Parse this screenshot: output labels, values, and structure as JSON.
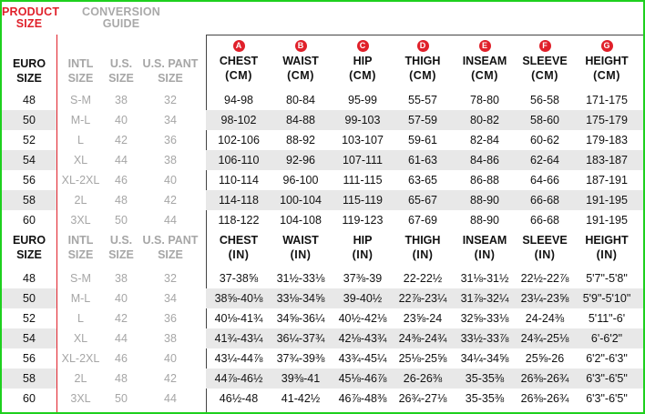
{
  "header": {
    "product_size": [
      "PRODUCT",
      "SIZE"
    ],
    "conversion_guide": [
      "CONVERSION",
      "GUIDE"
    ]
  },
  "badge_color": "#e0202a",
  "columns": {
    "euro": [
      "EURO",
      "SIZE"
    ],
    "intl": [
      "INTL",
      "SIZE"
    ],
    "us": [
      "U.S.",
      "SIZE"
    ],
    "uspant": [
      "U.S. PANT",
      "SIZE"
    ],
    "measurements": [
      {
        "badge": "A",
        "name": "CHEST"
      },
      {
        "badge": "B",
        "name": "WAIST"
      },
      {
        "badge": "C",
        "name": "HIP"
      },
      {
        "badge": "D",
        "name": "THIGH"
      },
      {
        "badge": "E",
        "name": "INSEAM"
      },
      {
        "badge": "F",
        "name": "SLEEVE"
      },
      {
        "badge": "G",
        "name": "HEIGHT"
      }
    ],
    "unit_cm": "(CM)",
    "unit_in": "(IN)"
  },
  "cm_rows": [
    {
      "euro": "48",
      "intl": "S-M",
      "us": "38",
      "pant": "32",
      "vals": [
        "94-98",
        "80-84",
        "95-99",
        "55-57",
        "78-80",
        "56-58",
        "171-175"
      ]
    },
    {
      "euro": "50",
      "intl": "M-L",
      "us": "40",
      "pant": "34",
      "vals": [
        "98-102",
        "84-88",
        "99-103",
        "57-59",
        "80-82",
        "58-60",
        "175-179"
      ]
    },
    {
      "euro": "52",
      "intl": "L",
      "us": "42",
      "pant": "36",
      "vals": [
        "102-106",
        "88-92",
        "103-107",
        "59-61",
        "82-84",
        "60-62",
        "179-183"
      ]
    },
    {
      "euro": "54",
      "intl": "XL",
      "us": "44",
      "pant": "38",
      "vals": [
        "106-110",
        "92-96",
        "107-111",
        "61-63",
        "84-86",
        "62-64",
        "183-187"
      ]
    },
    {
      "euro": "56",
      "intl": "XL-2XL",
      "us": "46",
      "pant": "40",
      "vals": [
        "110-114",
        "96-100",
        "111-115",
        "63-65",
        "86-88",
        "64-66",
        "187-191"
      ]
    },
    {
      "euro": "58",
      "intl": "2L",
      "us": "48",
      "pant": "42",
      "vals": [
        "114-118",
        "100-104",
        "115-119",
        "65-67",
        "88-90",
        "66-68",
        "191-195"
      ]
    },
    {
      "euro": "60",
      "intl": "3XL",
      "us": "50",
      "pant": "44",
      "vals": [
        "118-122",
        "104-108",
        "119-123",
        "67-69",
        "88-90",
        "66-68",
        "191-195"
      ]
    }
  ],
  "in_rows": [
    {
      "euro": "48",
      "intl": "S-M",
      "us": "38",
      "pant": "32",
      "vals": [
        "37-38⅝",
        "31½-33⅛",
        "37⅜-39",
        "22-22½",
        "31⅛-31½",
        "22½-22⅞",
        "5'7\"-5'8\""
      ]
    },
    {
      "euro": "50",
      "intl": "M-L",
      "us": "40",
      "pant": "34",
      "vals": [
        "38⅝-40⅛",
        "33⅛-34⅝",
        "39-40½",
        "22⅞-23¼",
        "31⅞-32¼",
        "23¼-23⅝",
        "5'9\"-5'10\""
      ]
    },
    {
      "euro": "52",
      "intl": "L",
      "us": "42",
      "pant": "36",
      "vals": [
        "40⅛-41¾",
        "34⅝-36¼",
        "40½-42⅛",
        "23⅝-24",
        "32⅝-33⅛",
        "24-24⅜",
        "5'11\"-6'"
      ]
    },
    {
      "euro": "54",
      "intl": "XL",
      "us": "44",
      "pant": "38",
      "vals": [
        "41¾-43¼",
        "36¼-37¾",
        "42⅛-43¾",
        "24⅜-24¾",
        "33½-33⅞",
        "24¾-25⅛",
        "6'-6'2\""
      ]
    },
    {
      "euro": "56",
      "intl": "XL-2XL",
      "us": "46",
      "pant": "40",
      "vals": [
        "43¼-44⅞",
        "37¾-39⅜",
        "43¾-45¼",
        "25⅛-25⅝",
        "34¼-34⅝",
        "25⅝-26",
        "6'2\"-6'3\""
      ]
    },
    {
      "euro": "58",
      "intl": "2L",
      "us": "48",
      "pant": "42",
      "vals": [
        "44⅞-46½",
        "39⅜-41",
        "45⅛-46⅞",
        "26-26⅜",
        "35-35⅜",
        "26⅜-26¾",
        "6'3\"-6'5\""
      ]
    },
    {
      "euro": "60",
      "intl": "3XL",
      "us": "50",
      "pant": "44",
      "vals": [
        "46½-48",
        "41-42½",
        "46⅞-48⅜",
        "26¾-27⅛",
        "35-35⅜",
        "26⅜-26¾",
        "6'3\"-6'5\""
      ]
    }
  ]
}
